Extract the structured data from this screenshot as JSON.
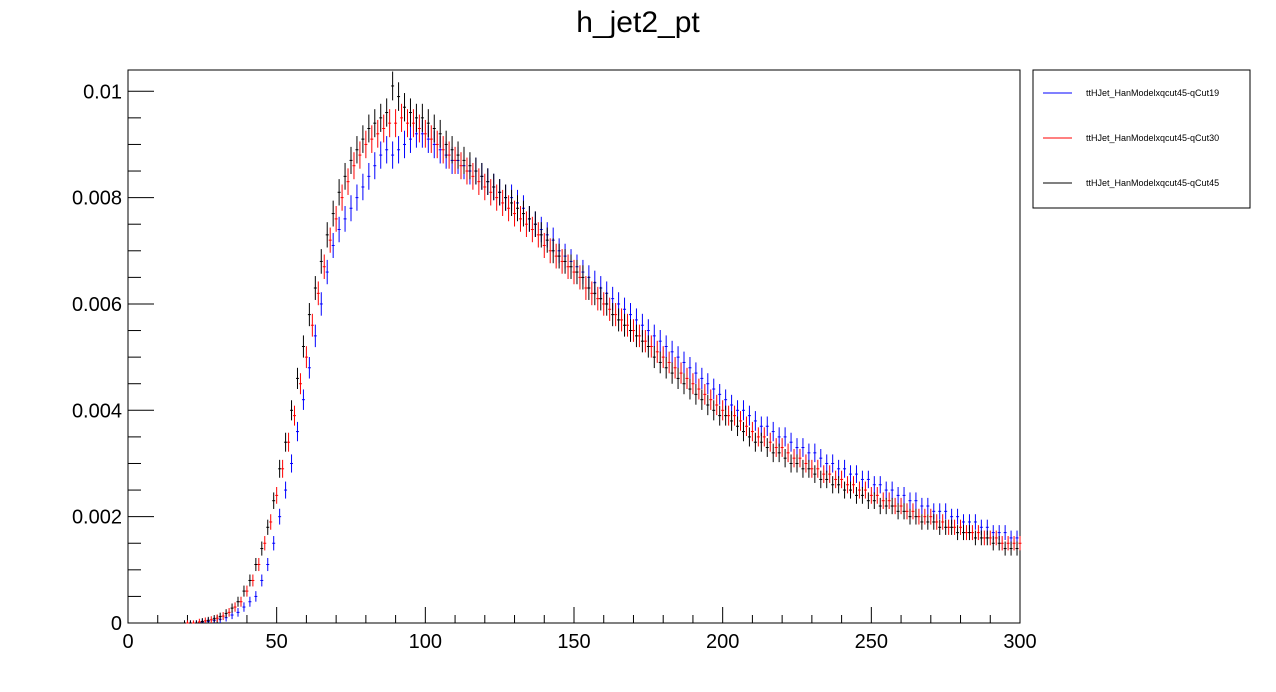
{
  "chart_data": {
    "type": "scatter",
    "title": "h_jet2_pt",
    "xlabel": "",
    "ylabel": "",
    "xlim": [
      0,
      300
    ],
    "ylim": [
      0,
      0.0104
    ],
    "x_ticks": [
      0,
      50,
      100,
      150,
      200,
      250,
      300
    ],
    "x_tick_labels": [
      "0",
      "50",
      "100",
      "150",
      "200",
      "250",
      "300"
    ],
    "y_ticks": [
      0,
      0.002,
      0.004,
      0.006,
      0.008,
      0.01
    ],
    "y_tick_labels": [
      "0",
      "0.002",
      "0.004",
      "0.006",
      "0.008",
      "0.01"
    ],
    "legend_position": "right",
    "grid": false,
    "bin_width": 2,
    "series": [
      {
        "name": "ttHJet_HanModelxqcut45-qCut19",
        "color": "#0000ff",
        "x": [
          19,
          21,
          23,
          25,
          27,
          29,
          31,
          33,
          35,
          37,
          39,
          41,
          43,
          45,
          47,
          49,
          51,
          53,
          55,
          57,
          59,
          61,
          63,
          65,
          67,
          69,
          71,
          73,
          75,
          77,
          79,
          81,
          83,
          85,
          87,
          89,
          91,
          93,
          95,
          97,
          99,
          101,
          103,
          105,
          107,
          109,
          111,
          113,
          115,
          117,
          119,
          121,
          123,
          125,
          127,
          129,
          131,
          133,
          135,
          137,
          139,
          141,
          143,
          145,
          147,
          149,
          151,
          153,
          155,
          157,
          159,
          161,
          163,
          165,
          167,
          169,
          171,
          173,
          175,
          177,
          179,
          181,
          183,
          185,
          187,
          189,
          191,
          193,
          195,
          197,
          199,
          201,
          203,
          205,
          207,
          209,
          211,
          213,
          215,
          217,
          219,
          221,
          223,
          225,
          227,
          229,
          231,
          233,
          235,
          237,
          239,
          241,
          243,
          245,
          247,
          249,
          251,
          253,
          255,
          257,
          259,
          261,
          263,
          265,
          267,
          269,
          271,
          273,
          275,
          277,
          279,
          281,
          283,
          285,
          287,
          289,
          291,
          293,
          295,
          297,
          299
        ],
        "y": [
          0,
          0,
          0,
          2e-05,
          3e-05,
          5e-05,
          7e-05,
          0.0001,
          0.00015,
          0.0002,
          0.0003,
          0.0004,
          0.0005,
          0.0008,
          0.0011,
          0.0015,
          0.002,
          0.0025,
          0.003,
          0.0036,
          0.0042,
          0.0048,
          0.0054,
          0.006,
          0.0066,
          0.0071,
          0.0074,
          0.0076,
          0.0078,
          0.008,
          0.0082,
          0.0084,
          0.0086,
          0.0088,
          0.0089,
          0.0088,
          0.0089,
          0.009,
          0.0091,
          0.0092,
          0.0092,
          0.0091,
          0.009,
          0.0089,
          0.0088,
          0.0087,
          0.0087,
          0.0086,
          0.0085,
          0.0085,
          0.0084,
          0.0083,
          0.0082,
          0.0081,
          0.008,
          0.008,
          0.0079,
          0.0078,
          0.0076,
          0.0075,
          0.0074,
          0.0073,
          0.0072,
          0.007,
          0.0069,
          0.0068,
          0.0067,
          0.0066,
          0.0065,
          0.0064,
          0.0063,
          0.0062,
          0.0061,
          0.006,
          0.0059,
          0.0058,
          0.0057,
          0.0056,
          0.0055,
          0.0054,
          0.0053,
          0.0052,
          0.0051,
          0.005,
          0.0049,
          0.0048,
          0.0047,
          0.0046,
          0.0045,
          0.0044,
          0.0043,
          0.0042,
          0.0041,
          0.004,
          0.004,
          0.0039,
          0.0038,
          0.0037,
          0.0037,
          0.0036,
          0.0035,
          0.0035,
          0.0034,
          0.0033,
          0.0033,
          0.0032,
          0.0032,
          0.0031,
          0.003,
          0.003,
          0.0029,
          0.0029,
          0.0028,
          0.0028,
          0.0027,
          0.0027,
          0.0026,
          0.0026,
          0.0025,
          0.0025,
          0.0024,
          0.0024,
          0.0023,
          0.0023,
          0.0022,
          0.0022,
          0.0021,
          0.0021,
          0.0021,
          0.002,
          0.002,
          0.0019,
          0.0019,
          0.0019,
          0.0018,
          0.0018,
          0.0017,
          0.0017,
          0.0017,
          0.0016,
          0.0016
        ]
      },
      {
        "name": "ttHJet_HanModelxqcut45-qCut30",
        "color": "#ff0000",
        "x": [
          20,
          22,
          24,
          26,
          28,
          30,
          32,
          34,
          36,
          38,
          40,
          42,
          44,
          46,
          48,
          50,
          52,
          54,
          56,
          58,
          60,
          62,
          64,
          66,
          68,
          70,
          72,
          74,
          76,
          78,
          80,
          82,
          84,
          86,
          88,
          90,
          92,
          94,
          96,
          98,
          100,
          102,
          104,
          106,
          108,
          110,
          112,
          114,
          116,
          118,
          120,
          122,
          124,
          126,
          128,
          130,
          132,
          134,
          136,
          138,
          140,
          142,
          144,
          146,
          148,
          150,
          152,
          154,
          156,
          158,
          160,
          162,
          164,
          166,
          168,
          170,
          172,
          174,
          176,
          178,
          180,
          182,
          184,
          186,
          188,
          190,
          192,
          194,
          196,
          198,
          200,
          202,
          204,
          206,
          208,
          210,
          212,
          214,
          216,
          218,
          220,
          222,
          224,
          226,
          228,
          230,
          232,
          234,
          236,
          238,
          240,
          242,
          244,
          246,
          248,
          250,
          252,
          254,
          256,
          258,
          260,
          262,
          264,
          266,
          268,
          270,
          272,
          274,
          276,
          278,
          280,
          282,
          284,
          286,
          288,
          290,
          292,
          294,
          296,
          298,
          300
        ],
        "y": [
          0,
          0,
          2e-05,
          4e-05,
          6e-05,
          9e-05,
          0.00013,
          0.0002,
          0.0003,
          0.0004,
          0.0006,
          0.0008,
          0.0011,
          0.0015,
          0.0019,
          0.0024,
          0.0029,
          0.0034,
          0.0039,
          0.0045,
          0.005,
          0.0056,
          0.0062,
          0.0067,
          0.0072,
          0.0076,
          0.008,
          0.0083,
          0.0086,
          0.0088,
          0.009,
          0.0091,
          0.0092,
          0.0093,
          0.0094,
          0.0094,
          0.0095,
          0.0094,
          0.0094,
          0.0093,
          0.0092,
          0.0091,
          0.009,
          0.0089,
          0.0088,
          0.0087,
          0.0086,
          0.0085,
          0.0084,
          0.0083,
          0.0082,
          0.0081,
          0.008,
          0.0079,
          0.0078,
          0.0077,
          0.0076,
          0.0075,
          0.0074,
          0.0073,
          0.0071,
          0.007,
          0.0069,
          0.0068,
          0.0067,
          0.0066,
          0.0065,
          0.0063,
          0.0062,
          0.0061,
          0.006,
          0.0059,
          0.0058,
          0.0057,
          0.0056,
          0.0055,
          0.0054,
          0.0053,
          0.0052,
          0.0051,
          0.005,
          0.0049,
          0.0048,
          0.0047,
          0.0046,
          0.0045,
          0.0044,
          0.0043,
          0.0042,
          0.0041,
          0.004,
          0.0039,
          0.0039,
          0.0038,
          0.0037,
          0.0036,
          0.0035,
          0.0035,
          0.0034,
          0.0033,
          0.0033,
          0.0032,
          0.0031,
          0.0031,
          0.003,
          0.0029,
          0.0029,
          0.0028,
          0.0028,
          0.0027,
          0.0027,
          0.0026,
          0.0026,
          0.0025,
          0.0025,
          0.0024,
          0.0024,
          0.0023,
          0.0023,
          0.0022,
          0.0022,
          0.0021,
          0.0021,
          0.002,
          0.002,
          0.002,
          0.0019,
          0.0019,
          0.0018,
          0.0018,
          0.0018,
          0.0017,
          0.0017,
          0.0017,
          0.0016,
          0.0016,
          0.0016,
          0.0015,
          0.0015,
          0.0015,
          0.0015
        ]
      },
      {
        "name": "ttHJet_HanModelxqcut45-qCut45",
        "color": "#000000",
        "x": [
          19,
          21,
          23,
          25,
          27,
          29,
          31,
          33,
          35,
          37,
          39,
          41,
          43,
          45,
          47,
          49,
          51,
          53,
          55,
          57,
          59,
          61,
          63,
          65,
          67,
          69,
          71,
          73,
          75,
          77,
          79,
          81,
          83,
          85,
          87,
          89,
          91,
          93,
          95,
          97,
          99,
          101,
          103,
          105,
          107,
          109,
          111,
          113,
          115,
          117,
          119,
          121,
          123,
          125,
          127,
          129,
          131,
          133,
          135,
          137,
          139,
          141,
          143,
          145,
          147,
          149,
          151,
          153,
          155,
          157,
          159,
          161,
          163,
          165,
          167,
          169,
          171,
          173,
          175,
          177,
          179,
          181,
          183,
          185,
          187,
          189,
          191,
          193,
          195,
          197,
          199,
          201,
          203,
          205,
          207,
          209,
          211,
          213,
          215,
          217,
          219,
          221,
          223,
          225,
          227,
          229,
          231,
          233,
          235,
          237,
          239,
          241,
          243,
          245,
          247,
          249,
          251,
          253,
          255,
          257,
          259,
          261,
          263,
          265,
          267,
          269,
          271,
          273,
          275,
          277,
          279,
          281,
          283,
          285,
          287,
          289,
          291,
          293,
          295,
          297,
          299
        ],
        "y": [
          0,
          0,
          0,
          3e-05,
          5e-05,
          8e-05,
          0.00012,
          0.00018,
          0.00028,
          0.0004,
          0.0006,
          0.0008,
          0.0011,
          0.0014,
          0.0018,
          0.0023,
          0.0029,
          0.0034,
          0.004,
          0.0046,
          0.0052,
          0.0058,
          0.0063,
          0.0068,
          0.0073,
          0.0077,
          0.0081,
          0.0084,
          0.0087,
          0.0089,
          0.0091,
          0.0093,
          0.0094,
          0.0095,
          0.0096,
          0.0101,
          0.0099,
          0.0097,
          0.0096,
          0.0095,
          0.0095,
          0.0094,
          0.0093,
          0.0092,
          0.009,
          0.0089,
          0.0088,
          0.0087,
          0.0086,
          0.0085,
          0.0084,
          0.0083,
          0.0082,
          0.0081,
          0.008,
          0.0079,
          0.0078,
          0.0077,
          0.0076,
          0.0075,
          0.0073,
          0.0072,
          0.007,
          0.0069,
          0.0068,
          0.0067,
          0.0066,
          0.0065,
          0.0063,
          0.0062,
          0.0061,
          0.006,
          0.0058,
          0.0057,
          0.0056,
          0.0055,
          0.0054,
          0.0053,
          0.0052,
          0.005,
          0.0049,
          0.0048,
          0.0047,
          0.0046,
          0.0045,
          0.0044,
          0.0043,
          0.0042,
          0.0041,
          0.004,
          0.0039,
          0.0039,
          0.0038,
          0.0037,
          0.0036,
          0.0035,
          0.0034,
          0.0034,
          0.0033,
          0.0032,
          0.0032,
          0.0031,
          0.003,
          0.003,
          0.0029,
          0.0029,
          0.0028,
          0.0027,
          0.0027,
          0.0026,
          0.0026,
          0.0025,
          0.0025,
          0.0024,
          0.0024,
          0.0023,
          0.0023,
          0.0022,
          0.0022,
          0.0022,
          0.0021,
          0.0021,
          0.002,
          0.002,
          0.0019,
          0.0019,
          0.0019,
          0.0018,
          0.0018,
          0.0018,
          0.0017,
          0.0017,
          0.0017,
          0.0016,
          0.0016,
          0.0016,
          0.0015,
          0.0015,
          0.0014,
          0.0014,
          0.0014
        ]
      }
    ]
  }
}
